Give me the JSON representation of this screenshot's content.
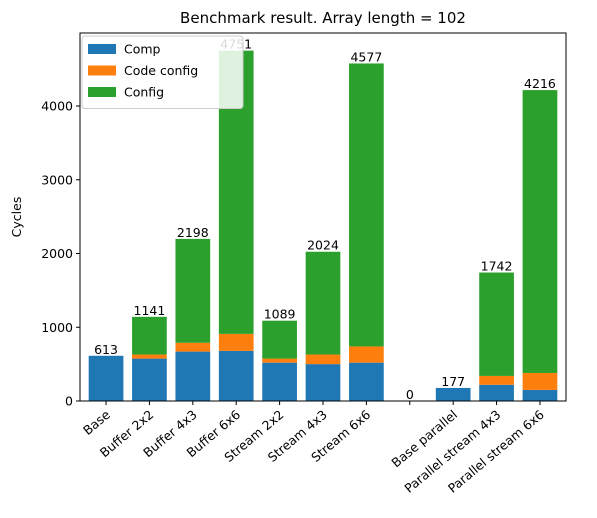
{
  "chart_data": {
    "type": "bar",
    "stacked": true,
    "title": "Benchmark result. Array length = 102",
    "xlabel": "",
    "ylabel": "Cycles",
    "ylim": [
      0,
      4990
    ],
    "yticks": [
      0,
      1000,
      2000,
      3000,
      4000
    ],
    "categories": [
      "Base",
      "Buffer 2x2",
      "Buffer 4x3",
      "Buffer 6x6",
      "Stream 2x2",
      "Stream 4x3",
      "Stream 6x6",
      "",
      "Base parallel",
      "Parallel stream 4x3",
      "Parallel stream 6x6"
    ],
    "series": [
      {
        "name": "Comp",
        "color": "#1f77b4",
        "values": [
          613,
          575,
          670,
          680,
          520,
          500,
          520,
          0,
          177,
          220,
          150
        ]
      },
      {
        "name": "Code config",
        "color": "#ff7f0e",
        "values": [
          0,
          55,
          120,
          230,
          55,
          130,
          220,
          0,
          0,
          120,
          230
        ]
      },
      {
        "name": "Config",
        "color": "#2ca02c",
        "values": [
          0,
          511,
          1408,
          3841,
          514,
          1394,
          3837,
          0,
          0,
          1402,
          3836
        ]
      }
    ],
    "totals": [
      "613",
      "1141",
      "2198",
      "4751",
      "1089",
      "2024",
      "4577",
      "0",
      "177",
      "1742",
      "4216"
    ],
    "legend": "top-left",
    "grid": false
  }
}
